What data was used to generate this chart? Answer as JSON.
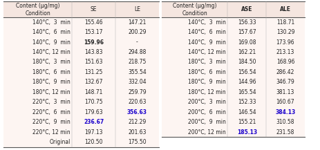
{
  "conditions": [
    "140°C,  3  min",
    "140°C,  6  min",
    "140°C,  9  min",
    "140°C, 12 min",
    "180°C,  3  min",
    "180°C,  6  min",
    "180°C,  9  min",
    "180°C, 12 min",
    "220°C,  3  min",
    "220°C,  6  min",
    "220°C,  9  min",
    "220°C, 12 min",
    "Original"
  ],
  "conditions_right": [
    "140°C,  3  min",
    "140°C,  6  min",
    "140°C,  9  min",
    "140°C, 12 min",
    "180°C,  3  min",
    "180°C,  6  min",
    "180°C,  9  min",
    "180°C, 12 min",
    "200°C,  3  min",
    "200°C,  6  min",
    "200°C,  9  min",
    "200°C, 12 min"
  ],
  "se_values": [
    "155.46",
    "153.17",
    "159.96",
    "143.83",
    "151.63",
    "131.25",
    "132.67",
    "148.71",
    "170.75",
    "179.63",
    "236.67",
    "197.13",
    "120.50"
  ],
  "le_values": [
    "147.21",
    "200.29",
    "-",
    "294.88",
    "218.75",
    "355.54",
    "332.04",
    "259.79",
    "220.63",
    "356.63",
    "212.29",
    "201.63",
    "175.50"
  ],
  "ase_values": [
    "156.33",
    "157.67",
    "169.08",
    "162.21",
    "184.50",
    "156.54",
    "144.96",
    "165.54",
    "152.33",
    "146.54",
    "155.21",
    "185.13"
  ],
  "ale_values": [
    "118.71",
    "130.29",
    "173.96",
    "213.13",
    "168.96",
    "286.42",
    "346.79",
    "381.13",
    "160.67",
    "384.13",
    "310.58",
    "231.58"
  ],
  "bold_blue_se": [
    "236.67"
  ],
  "bold_blue_le": [
    "356.63"
  ],
  "bold_se": [
    "159.96"
  ],
  "bold_blue_ase": [
    "185.13"
  ],
  "bold_blue_ale": [
    "384.13"
  ],
  "bg_color_header": "#f5e6e0",
  "bg_color_rows": "#fdf5f2",
  "text_color": "#222222",
  "blue_color": "#1a00cc",
  "font_size": 5.5
}
